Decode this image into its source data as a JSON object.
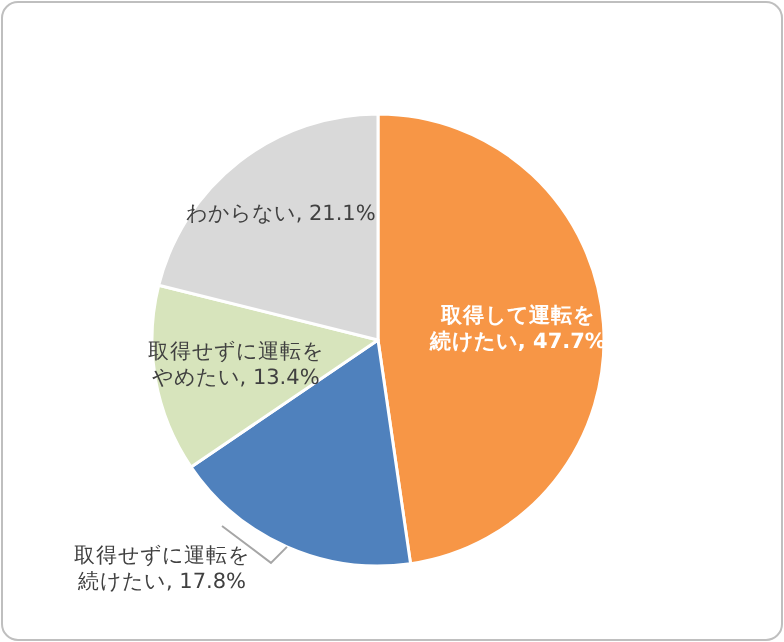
{
  "chart_data": {
    "type": "pie",
    "categories": [
      "取得して運転を続けたい",
      "取得せずに運転を続けたい",
      "取得せずに運転をやめたい",
      "わからない"
    ],
    "values": [
      47.7,
      17.8,
      13.4,
      21.1
    ],
    "value_labels": [
      "47.7%",
      "17.8%",
      "13.4%",
      "21.1%"
    ],
    "colors": [
      "#f79646",
      "#4f81bd",
      "#d7e4bc",
      "#d9d9d9"
    ]
  }
}
